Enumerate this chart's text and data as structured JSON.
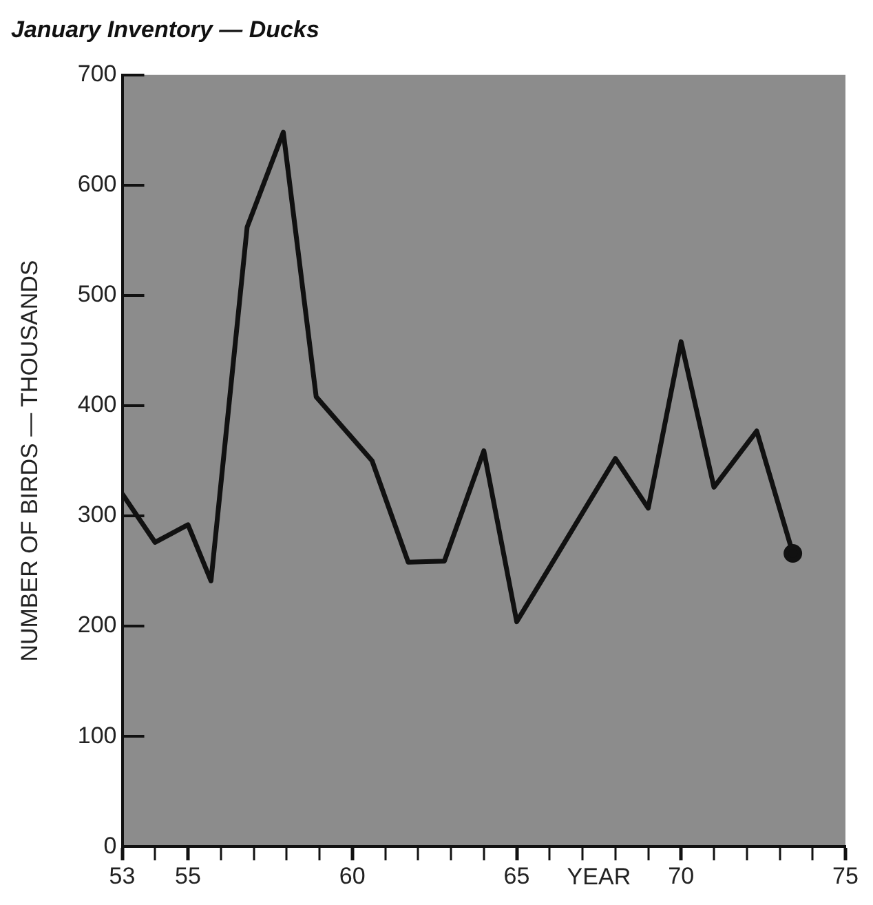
{
  "chart_data": {
    "type": "line",
    "title": "January Inventory — Ducks",
    "xlabel": "YEAR",
    "ylabel": "NUMBER OF BIRDS — THOUSANDS",
    "x": [
      53,
      54,
      55,
      55.7,
      56.8,
      57.9,
      58.9,
      60.6,
      61.7,
      62.8,
      64,
      65,
      68,
      69,
      70,
      71,
      72.3,
      73.4
    ],
    "series": [
      {
        "color": "#111111",
        "values": [
          320,
          276,
          292,
          241,
          562,
          648,
          408,
          350,
          258,
          259,
          359,
          204,
          352,
          307,
          458,
          326,
          377,
          266
        ]
      }
    ],
    "xlim": [
      53,
      75
    ],
    "ylim": [
      0,
      700
    ],
    "xticks": [
      53,
      {
        "value": 54,
        "label": null
      },
      55,
      {
        "value": 56,
        "label": null
      },
      {
        "value": 57,
        "label": null
      },
      {
        "value": 58,
        "label": null
      },
      {
        "value": 59,
        "label": null
      },
      60,
      {
        "value": 61,
        "label": null
      },
      {
        "value": 62,
        "label": null
      },
      {
        "value": 63,
        "label": null
      },
      {
        "value": 64,
        "label": null
      },
      65,
      {
        "value": 66,
        "label": null
      },
      {
        "value": 67,
        "label": null
      },
      {
        "value": 68,
        "label": null
      },
      {
        "value": 69,
        "label": null
      },
      70,
      {
        "value": 71,
        "label": null
      },
      {
        "value": 72,
        "label": null
      },
      {
        "value": 73,
        "label": null
      },
      {
        "value": 74,
        "label": null
      },
      75
    ],
    "yticks": [
      0,
      100,
      200,
      300,
      400,
      500,
      600,
      700
    ],
    "line_style": "solid",
    "legend": false
  }
}
